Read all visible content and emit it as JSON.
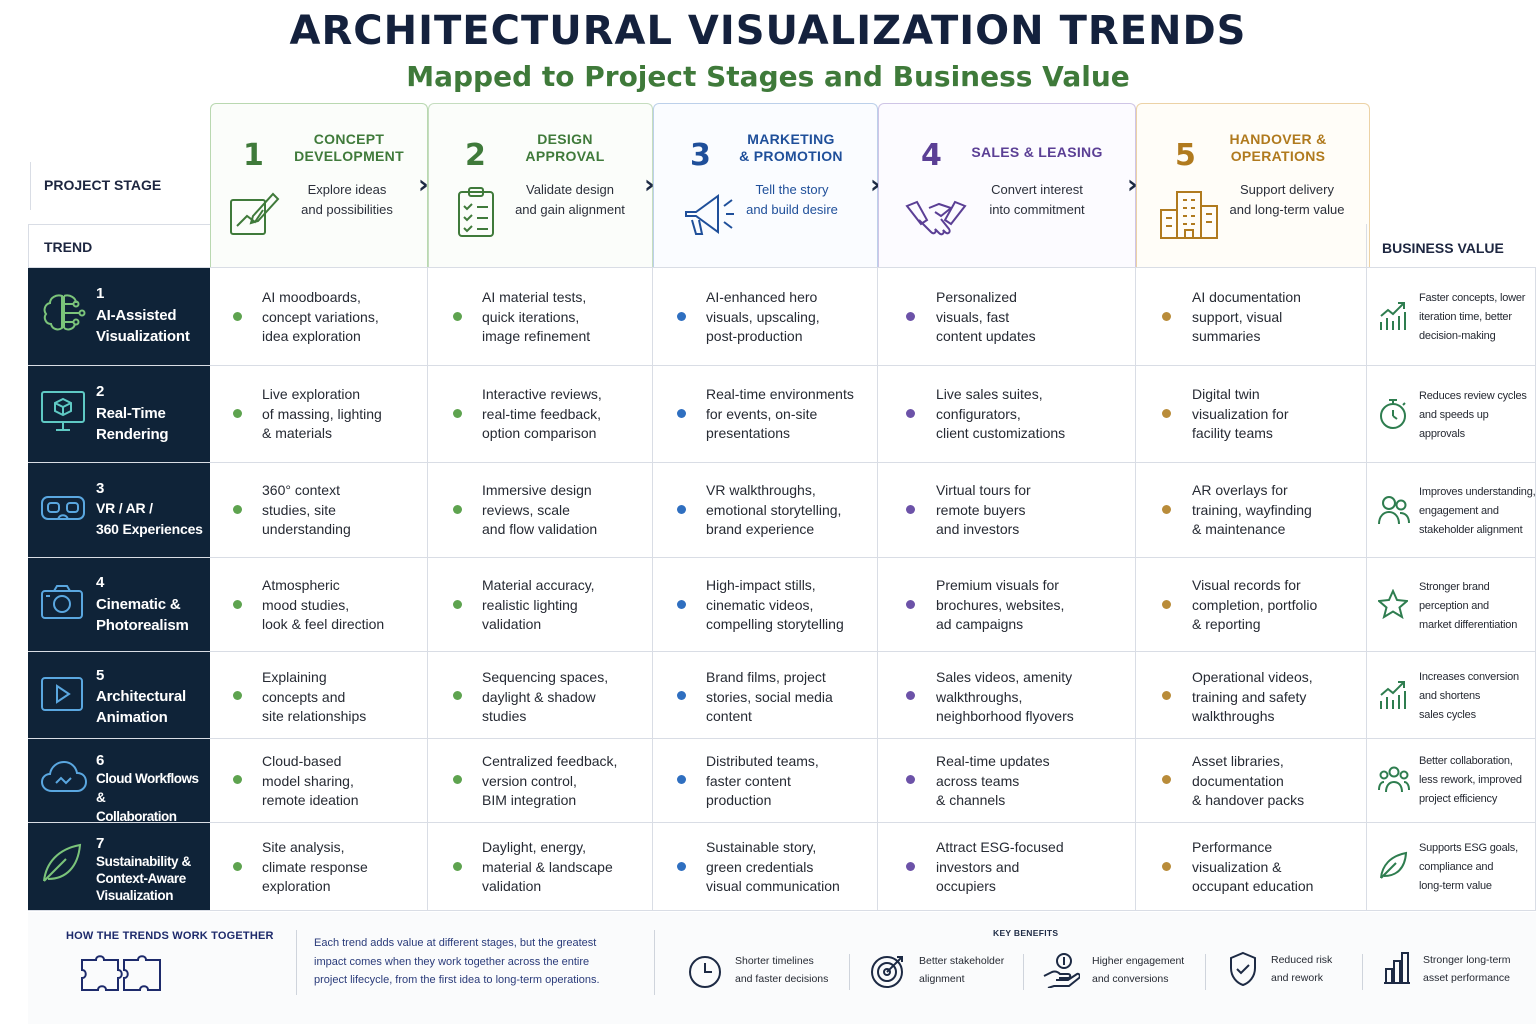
{
  "header": {
    "title": "ARCHITECTURAL VISUALIZATION TRENDS",
    "subtitle": "Mapped to Project Stages and Business Value"
  },
  "labels": {
    "project_stage": "PROJECT STAGE",
    "trend": "TREND",
    "business_value": "BUSINESS VALUE"
  },
  "stages": [
    {
      "num": "1",
      "name": "CONCEPT\nDEVELOPMENT",
      "desc": "Explore ideas\nand possibilities",
      "icon": "sketch-pencil-icon",
      "color": "#3f7a3a"
    },
    {
      "num": "2",
      "name": "DESIGN\nAPPROVAL",
      "desc": "Validate design\nand gain alignment",
      "icon": "checklist-clipboard-icon",
      "color": "#3f7a3a"
    },
    {
      "num": "3",
      "name": "MARKETING\n& PROMOTION",
      "desc": "Tell the story\nand build desire",
      "icon": "megaphone-icon",
      "color": "#1f4f9a"
    },
    {
      "num": "4",
      "name": "SALES & LEASING",
      "desc": "Convert interest\ninto commitment",
      "icon": "handshake-icon",
      "color": "#5b3f95"
    },
    {
      "num": "5",
      "name": "HANDOVER &\nOPERATIONS",
      "desc": "Support delivery\nand long-term value",
      "icon": "building-icon",
      "color": "#b07a1e"
    }
  ],
  "trends": [
    {
      "num": "1",
      "name": "AI-Assisted\nVisualizationt",
      "icon": "brain-circuit-icon",
      "cells": [
        "AI moodboards,\nconcept variations,\nidea exploration",
        "AI material tests,\nquick iterations,\nimage refinement",
        "AI-enhanced hero\nvisuals, upscaling,\npost-production",
        "Personalized\nvisuals, fast\ncontent updates",
        "AI documentation\nsupport, visual\nsummaries"
      ],
      "value": "Faster concepts, lower\niteration time, better\ndecision-making",
      "value_icon": "growth-chart-icon"
    },
    {
      "num": "2",
      "name": "Real-Time\nRendering",
      "icon": "monitor-cube-icon",
      "cells": [
        "Live exploration\nof massing, lighting\n& materials",
        "Interactive reviews,\nreal-time feedback,\noption comparison",
        "Real-time environments\nfor events, on-site\npresentations",
        "Live sales suites,\nconfigurators,\nclient customizations",
        "Digital twin\nvisualization for\nfacility teams"
      ],
      "value": "Reduces review cycles\nand speeds up\napprovals",
      "value_icon": "stopwatch-icon"
    },
    {
      "num": "3",
      "name": "VR / AR /\n360 Experiences",
      "icon": "vr-headset-icon",
      "cells": [
        "360° context\nstudies, site\nunderstanding",
        "Immersive design\nreviews, scale\nand flow validation",
        "VR walkthroughs,\nemotional storytelling,\nbrand experience",
        "Virtual tours for\nremote buyers\nand investors",
        "AR overlays for\ntraining, wayfinding\n& maintenance"
      ],
      "value": "Improves understanding,\nengagement and\nstakeholder alignment",
      "value_icon": "people-icon"
    },
    {
      "num": "4",
      "name": "Cinematic &\nPhotorealism",
      "icon": "camera-icon",
      "cells": [
        "Atmospheric\nmood studies,\nlook & feel direction",
        "Material accuracy,\nrealistic lighting\nvalidation",
        "High-impact stills,\ncinematic videos,\ncompelling storytelling",
        "Premium visuals for\nbrochures, websites,\nad campaigns",
        "Visual records for\ncompletion, portfolio\n& reporting"
      ],
      "value": "Stronger brand\nperception and\nmarket differentiation",
      "value_icon": "star-icon"
    },
    {
      "num": "5",
      "name": "Architectural\nAnimation",
      "icon": "play-video-icon",
      "cells": [
        "Explaining\nconcepts and\nsite relationships",
        "Sequencing spaces,\ndaylight & shadow\nstudies",
        "Brand films, project\nstories, social media\ncontent",
        "Sales videos, amenity\nwalkthroughs,\nneighborhood flyovers",
        "Operational videos,\ntraining and safety\nwalkthroughs"
      ],
      "value": "Increases conversion\nand shortens\nsales cycles",
      "value_icon": "growth-chart-icon"
    },
    {
      "num": "6",
      "name": "Cloud Workflows &\nCollaboration",
      "icon": "cloud-icon",
      "cells": [
        "Cloud-based\nmodel sharing,\nremote ideation",
        "Centralized feedback,\nversion control,\nBIM integration",
        "Distributed teams,\nfaster content\nproduction",
        "Real-time updates\nacross teams\n& channels",
        "Asset libraries,\ndocumentation\n& handover packs"
      ],
      "value": "Better collaboration,\nless rework, improved\nproject efficiency",
      "value_icon": "team-icon"
    },
    {
      "num": "7",
      "name": "Sustainability &\nContext-Aware\nVisualization",
      "icon": "leaf-icon",
      "cells": [
        "Site analysis,\nclimate response\nexploration",
        "Daylight, energy,\nmaterial & landscape\nvalidation",
        "Sustainable story,\ngreen credentials\nvisual communication",
        "Attract ESG-focused\ninvestors and\noccupiers",
        "Performance\nvisualization &\noccupant education"
      ],
      "value": "Supports ESG goals,\ncompliance and\nlong-term value",
      "value_icon": "leaf-icon"
    }
  ],
  "footer": {
    "how_title": "HOW THE TRENDS WORK TOGETHER",
    "how_text": "Each trend adds value at different stages, but the greatest\nimpact comes when they work together across the entire\nproject lifecycle, from the first idea to long-term operations.",
    "how_icon": "puzzle-icon",
    "benefits_title": "KEY BENEFITS",
    "benefits": [
      {
        "text": "Shorter timelines\nand faster decisions",
        "icon": "clock-icon"
      },
      {
        "text": "Better stakeholder\nalignment",
        "icon": "target-icon"
      },
      {
        "text": "Higher engagement\nand conversions",
        "icon": "hand-coin-icon"
      },
      {
        "text": "Reduced risk\nand rework",
        "icon": "shield-check-icon"
      },
      {
        "text": "Stronger long-term\nasset performance",
        "icon": "bar-building-icon"
      }
    ]
  }
}
